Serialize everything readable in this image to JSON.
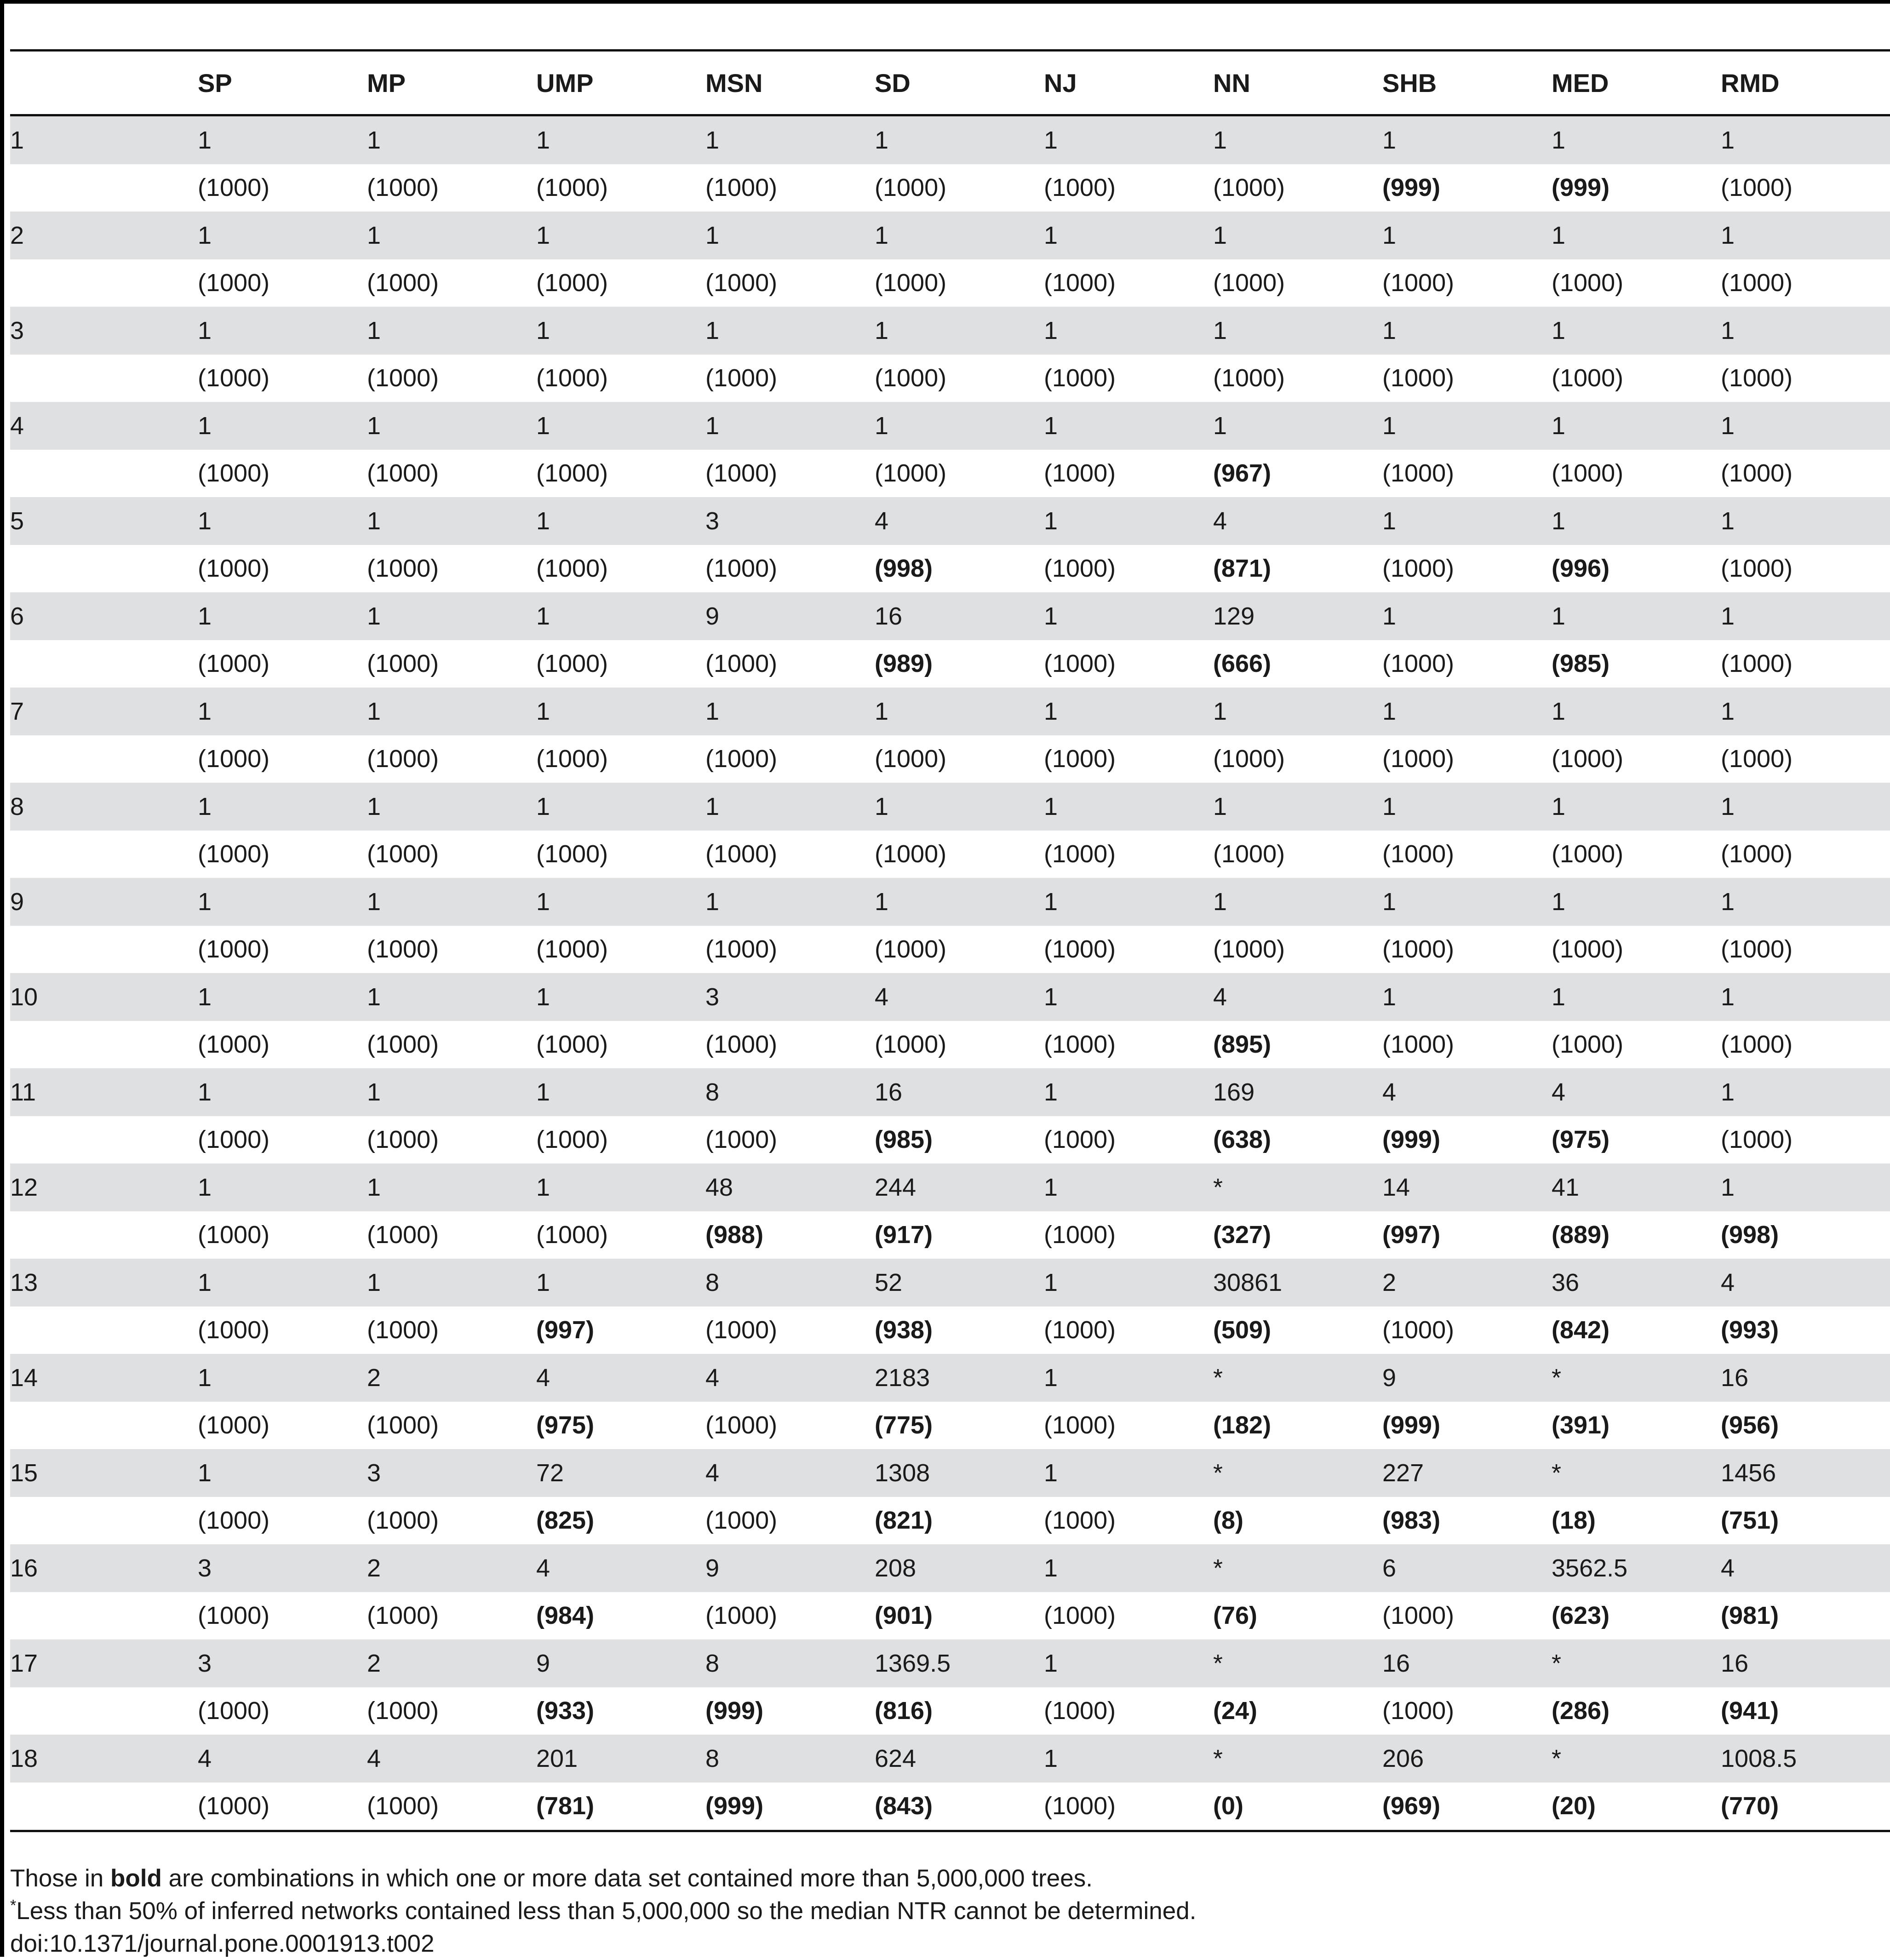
{
  "table": {
    "columns": [
      "",
      "SP",
      "MP",
      "UMP",
      "MSN",
      "SD",
      "NJ",
      "NN",
      "SHB",
      "MED",
      "RMD"
    ],
    "rows": [
      {
        "label": "1",
        "values": [
          "1",
          "1",
          "1",
          "1",
          "1",
          "1",
          "1",
          "1",
          "1",
          "1"
        ],
        "counts": [
          {
            "v": "(1000)",
            "b": false
          },
          {
            "v": "(1000)",
            "b": false
          },
          {
            "v": "(1000)",
            "b": false
          },
          {
            "v": "(1000)",
            "b": false
          },
          {
            "v": "(1000)",
            "b": false
          },
          {
            "v": "(1000)",
            "b": false
          },
          {
            "v": "(1000)",
            "b": false
          },
          {
            "v": "(999)",
            "b": true
          },
          {
            "v": "(999)",
            "b": true
          },
          {
            "v": "(1000)",
            "b": false
          }
        ]
      },
      {
        "label": "2",
        "values": [
          "1",
          "1",
          "1",
          "1",
          "1",
          "1",
          "1",
          "1",
          "1",
          "1"
        ],
        "counts": [
          {
            "v": "(1000)",
            "b": false
          },
          {
            "v": "(1000)",
            "b": false
          },
          {
            "v": "(1000)",
            "b": false
          },
          {
            "v": "(1000)",
            "b": false
          },
          {
            "v": "(1000)",
            "b": false
          },
          {
            "v": "(1000)",
            "b": false
          },
          {
            "v": "(1000)",
            "b": false
          },
          {
            "v": "(1000)",
            "b": false
          },
          {
            "v": "(1000)",
            "b": false
          },
          {
            "v": "(1000)",
            "b": false
          }
        ]
      },
      {
        "label": "3",
        "values": [
          "1",
          "1",
          "1",
          "1",
          "1",
          "1",
          "1",
          "1",
          "1",
          "1"
        ],
        "counts": [
          {
            "v": "(1000)",
            "b": false
          },
          {
            "v": "(1000)",
            "b": false
          },
          {
            "v": "(1000)",
            "b": false
          },
          {
            "v": "(1000)",
            "b": false
          },
          {
            "v": "(1000)",
            "b": false
          },
          {
            "v": "(1000)",
            "b": false
          },
          {
            "v": "(1000)",
            "b": false
          },
          {
            "v": "(1000)",
            "b": false
          },
          {
            "v": "(1000)",
            "b": false
          },
          {
            "v": "(1000)",
            "b": false
          }
        ]
      },
      {
        "label": "4",
        "values": [
          "1",
          "1",
          "1",
          "1",
          "1",
          "1",
          "1",
          "1",
          "1",
          "1"
        ],
        "counts": [
          {
            "v": "(1000)",
            "b": false
          },
          {
            "v": "(1000)",
            "b": false
          },
          {
            "v": "(1000)",
            "b": false
          },
          {
            "v": "(1000)",
            "b": false
          },
          {
            "v": "(1000)",
            "b": false
          },
          {
            "v": "(1000)",
            "b": false
          },
          {
            "v": "(967)",
            "b": true
          },
          {
            "v": "(1000)",
            "b": false
          },
          {
            "v": "(1000)",
            "b": false
          },
          {
            "v": "(1000)",
            "b": false
          }
        ]
      },
      {
        "label": "5",
        "values": [
          "1",
          "1",
          "1",
          "3",
          "4",
          "1",
          "4",
          "1",
          "1",
          "1"
        ],
        "counts": [
          {
            "v": "(1000)",
            "b": false
          },
          {
            "v": "(1000)",
            "b": false
          },
          {
            "v": "(1000)",
            "b": false
          },
          {
            "v": "(1000)",
            "b": false
          },
          {
            "v": "(998)",
            "b": true
          },
          {
            "v": "(1000)",
            "b": false
          },
          {
            "v": "(871)",
            "b": true
          },
          {
            "v": "(1000)",
            "b": false
          },
          {
            "v": "(996)",
            "b": true
          },
          {
            "v": "(1000)",
            "b": false
          }
        ]
      },
      {
        "label": "6",
        "values": [
          "1",
          "1",
          "1",
          "9",
          "16",
          "1",
          "129",
          "1",
          "1",
          "1"
        ],
        "counts": [
          {
            "v": "(1000)",
            "b": false
          },
          {
            "v": "(1000)",
            "b": false
          },
          {
            "v": "(1000)",
            "b": false
          },
          {
            "v": "(1000)",
            "b": false
          },
          {
            "v": "(989)",
            "b": true
          },
          {
            "v": "(1000)",
            "b": false
          },
          {
            "v": "(666)",
            "b": true
          },
          {
            "v": "(1000)",
            "b": false
          },
          {
            "v": "(985)",
            "b": true
          },
          {
            "v": "(1000)",
            "b": false
          }
        ]
      },
      {
        "label": "7",
        "values": [
          "1",
          "1",
          "1",
          "1",
          "1",
          "1",
          "1",
          "1",
          "1",
          "1"
        ],
        "counts": [
          {
            "v": "(1000)",
            "b": false
          },
          {
            "v": "(1000)",
            "b": false
          },
          {
            "v": "(1000)",
            "b": false
          },
          {
            "v": "(1000)",
            "b": false
          },
          {
            "v": "(1000)",
            "b": false
          },
          {
            "v": "(1000)",
            "b": false
          },
          {
            "v": "(1000)",
            "b": false
          },
          {
            "v": "(1000)",
            "b": false
          },
          {
            "v": "(1000)",
            "b": false
          },
          {
            "v": "(1000)",
            "b": false
          }
        ]
      },
      {
        "label": "8",
        "values": [
          "1",
          "1",
          "1",
          "1",
          "1",
          "1",
          "1",
          "1",
          "1",
          "1"
        ],
        "counts": [
          {
            "v": "(1000)",
            "b": false
          },
          {
            "v": "(1000)",
            "b": false
          },
          {
            "v": "(1000)",
            "b": false
          },
          {
            "v": "(1000)",
            "b": false
          },
          {
            "v": "(1000)",
            "b": false
          },
          {
            "v": "(1000)",
            "b": false
          },
          {
            "v": "(1000)",
            "b": false
          },
          {
            "v": "(1000)",
            "b": false
          },
          {
            "v": "(1000)",
            "b": false
          },
          {
            "v": "(1000)",
            "b": false
          }
        ]
      },
      {
        "label": "9",
        "values": [
          "1",
          "1",
          "1",
          "1",
          "1",
          "1",
          "1",
          "1",
          "1",
          "1"
        ],
        "counts": [
          {
            "v": "(1000)",
            "b": false
          },
          {
            "v": "(1000)",
            "b": false
          },
          {
            "v": "(1000)",
            "b": false
          },
          {
            "v": "(1000)",
            "b": false
          },
          {
            "v": "(1000)",
            "b": false
          },
          {
            "v": "(1000)",
            "b": false
          },
          {
            "v": "(1000)",
            "b": false
          },
          {
            "v": "(1000)",
            "b": false
          },
          {
            "v": "(1000)",
            "b": false
          },
          {
            "v": "(1000)",
            "b": false
          }
        ]
      },
      {
        "label": "10",
        "values": [
          "1",
          "1",
          "1",
          "3",
          "4",
          "1",
          "4",
          "1",
          "1",
          "1"
        ],
        "counts": [
          {
            "v": "(1000)",
            "b": false
          },
          {
            "v": "(1000)",
            "b": false
          },
          {
            "v": "(1000)",
            "b": false
          },
          {
            "v": "(1000)",
            "b": false
          },
          {
            "v": "(1000)",
            "b": false
          },
          {
            "v": "(1000)",
            "b": false
          },
          {
            "v": "(895)",
            "b": true
          },
          {
            "v": "(1000)",
            "b": false
          },
          {
            "v": "(1000)",
            "b": false
          },
          {
            "v": "(1000)",
            "b": false
          }
        ]
      },
      {
        "label": "11",
        "values": [
          "1",
          "1",
          "1",
          "8",
          "16",
          "1",
          "169",
          "4",
          "4",
          "1"
        ],
        "counts": [
          {
            "v": "(1000)",
            "b": false
          },
          {
            "v": "(1000)",
            "b": false
          },
          {
            "v": "(1000)",
            "b": false
          },
          {
            "v": "(1000)",
            "b": false
          },
          {
            "v": "(985)",
            "b": true
          },
          {
            "v": "(1000)",
            "b": false
          },
          {
            "v": "(638)",
            "b": true
          },
          {
            "v": "(999)",
            "b": true
          },
          {
            "v": "(975)",
            "b": true
          },
          {
            "v": "(1000)",
            "b": false
          }
        ]
      },
      {
        "label": "12",
        "values": [
          "1",
          "1",
          "1",
          "48",
          "244",
          "1",
          "*",
          "14",
          "41",
          "1"
        ],
        "counts": [
          {
            "v": "(1000)",
            "b": false
          },
          {
            "v": "(1000)",
            "b": false
          },
          {
            "v": "(1000)",
            "b": false
          },
          {
            "v": "(988)",
            "b": true
          },
          {
            "v": "(917)",
            "b": true
          },
          {
            "v": "(1000)",
            "b": false
          },
          {
            "v": "(327)",
            "b": true
          },
          {
            "v": "(997)",
            "b": true
          },
          {
            "v": "(889)",
            "b": true
          },
          {
            "v": "(998)",
            "b": true
          }
        ]
      },
      {
        "label": "13",
        "values": [
          "1",
          "1",
          "1",
          "8",
          "52",
          "1",
          "30861",
          "2",
          "36",
          "4"
        ],
        "counts": [
          {
            "v": "(1000)",
            "b": false
          },
          {
            "v": "(1000)",
            "b": false
          },
          {
            "v": "(997)",
            "b": true
          },
          {
            "v": "(1000)",
            "b": false
          },
          {
            "v": "(938)",
            "b": true
          },
          {
            "v": "(1000)",
            "b": false
          },
          {
            "v": "(509)",
            "b": true
          },
          {
            "v": "(1000)",
            "b": false
          },
          {
            "v": "(842)",
            "b": true
          },
          {
            "v": "(993)",
            "b": true
          }
        ]
      },
      {
        "label": "14",
        "values": [
          "1",
          "2",
          "4",
          "4",
          "2183",
          "1",
          "*",
          "9",
          "*",
          "16"
        ],
        "counts": [
          {
            "v": "(1000)",
            "b": false
          },
          {
            "v": "(1000)",
            "b": false
          },
          {
            "v": "(975)",
            "b": true
          },
          {
            "v": "(1000)",
            "b": false
          },
          {
            "v": "(775)",
            "b": true
          },
          {
            "v": "(1000)",
            "b": false
          },
          {
            "v": "(182)",
            "b": true
          },
          {
            "v": "(999)",
            "b": true
          },
          {
            "v": "(391)",
            "b": true
          },
          {
            "v": "(956)",
            "b": true
          }
        ]
      },
      {
        "label": "15",
        "values": [
          "1",
          "3",
          "72",
          "4",
          "1308",
          "1",
          "*",
          "227",
          "*",
          "1456"
        ],
        "counts": [
          {
            "v": "(1000)",
            "b": false
          },
          {
            "v": "(1000)",
            "b": false
          },
          {
            "v": "(825)",
            "b": true
          },
          {
            "v": "(1000)",
            "b": false
          },
          {
            "v": "(821)",
            "b": true
          },
          {
            "v": "(1000)",
            "b": false
          },
          {
            "v": "(8)",
            "b": true
          },
          {
            "v": "(983)",
            "b": true
          },
          {
            "v": "(18)",
            "b": true
          },
          {
            "v": "(751)",
            "b": true
          }
        ]
      },
      {
        "label": "16",
        "values": [
          "3",
          "2",
          "4",
          "9",
          "208",
          "1",
          "*",
          "6",
          "3562.5",
          "4"
        ],
        "counts": [
          {
            "v": "(1000)",
            "b": false
          },
          {
            "v": "(1000)",
            "b": false
          },
          {
            "v": "(984)",
            "b": true
          },
          {
            "v": "(1000)",
            "b": false
          },
          {
            "v": "(901)",
            "b": true
          },
          {
            "v": "(1000)",
            "b": false
          },
          {
            "v": "(76)",
            "b": true
          },
          {
            "v": "(1000)",
            "b": false
          },
          {
            "v": "(623)",
            "b": true
          },
          {
            "v": "(981)",
            "b": true
          }
        ]
      },
      {
        "label": "17",
        "values": [
          "3",
          "2",
          "9",
          "8",
          "1369.5",
          "1",
          "*",
          "16",
          "*",
          "16"
        ],
        "counts": [
          {
            "v": "(1000)",
            "b": false
          },
          {
            "v": "(1000)",
            "b": false
          },
          {
            "v": "(933)",
            "b": true
          },
          {
            "v": "(999)",
            "b": true
          },
          {
            "v": "(816)",
            "b": true
          },
          {
            "v": "(1000)",
            "b": false
          },
          {
            "v": "(24)",
            "b": true
          },
          {
            "v": "(1000)",
            "b": false
          },
          {
            "v": "(286)",
            "b": true
          },
          {
            "v": "(941)",
            "b": true
          }
        ]
      },
      {
        "label": "18",
        "values": [
          "4",
          "4",
          "201",
          "8",
          "624",
          "1",
          "*",
          "206",
          "*",
          "1008.5"
        ],
        "counts": [
          {
            "v": "(1000)",
            "b": false
          },
          {
            "v": "(1000)",
            "b": false
          },
          {
            "v": "(781)",
            "b": true
          },
          {
            "v": "(999)",
            "b": true
          },
          {
            "v": "(843)",
            "b": true
          },
          {
            "v": "(1000)",
            "b": false
          },
          {
            "v": "(0)",
            "b": true
          },
          {
            "v": "(969)",
            "b": true
          },
          {
            "v": "(20)",
            "b": true
          },
          {
            "v": "(770)",
            "b": true
          }
        ]
      }
    ]
  },
  "notes": {
    "bold_note_pre": "Those in ",
    "bold_note_bold": "bold",
    "bold_note_post": " are combinations in which one or more data set contained more than 5,000,000 trees.",
    "star_mark": "*",
    "star_note": "Less than 50% of inferred networks contained less than 5,000,000 so the median NTR cannot be determined.",
    "doi": "doi:10.1371/journal.pone.0001913.t002"
  }
}
